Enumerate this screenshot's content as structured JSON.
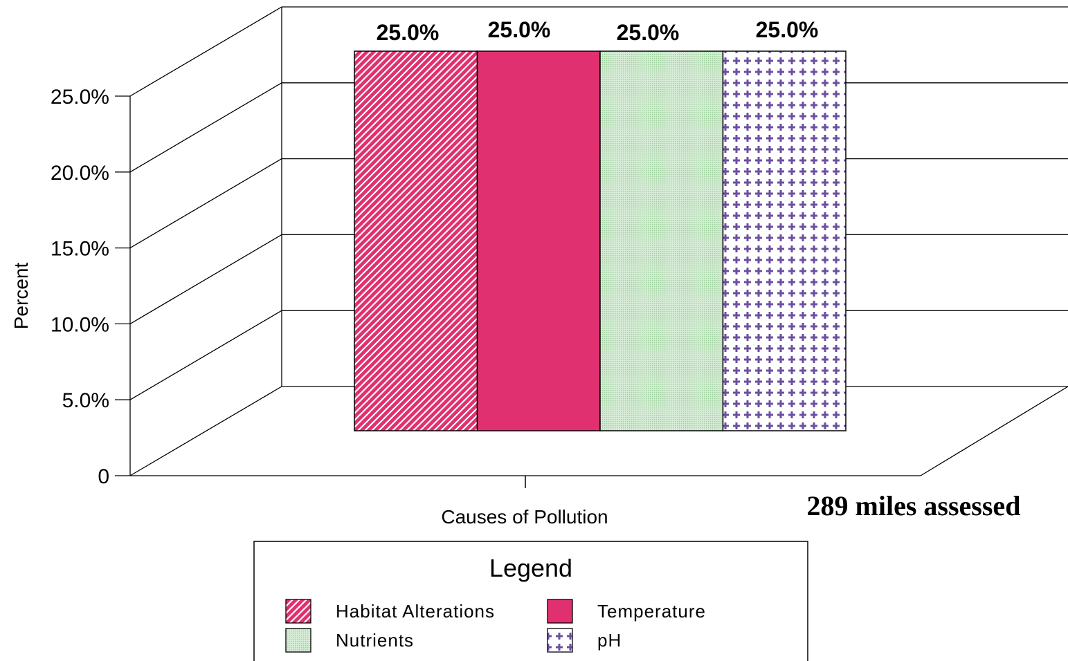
{
  "chart_data": {
    "type": "bar",
    "categories": [
      "Causes of Pollution"
    ],
    "series": [
      {
        "name": "Habitat Alterations",
        "values": [
          25.0
        ],
        "color": "#e0306f",
        "pattern": "diagonal-hatch"
      },
      {
        "name": "Temperature",
        "values": [
          25.0
        ],
        "color": "#e0306f",
        "pattern": "solid"
      },
      {
        "name": "Nutrients",
        "values": [
          25.0
        ],
        "color": "#c8e6c8",
        "pattern": "fine-dots"
      },
      {
        "name": "pH",
        "values": [
          25.0
        ],
        "color": "#6b4fa0",
        "pattern": "plus"
      }
    ],
    "data_labels": [
      "25.0%",
      "25.0%",
      "25.0%",
      "25.0%"
    ],
    "ylim": [
      0,
      25
    ],
    "yticks": [
      0,
      5,
      10,
      15,
      20,
      25
    ],
    "ytick_labels": [
      "0",
      "5.0%",
      "10.0%",
      "15.0%",
      "20.0%",
      "25.0%"
    ],
    "ylabel": "Percent",
    "xlabel": "Causes of Pollution",
    "title": "",
    "grid": true,
    "three_d": true,
    "legend": {
      "title": "Legend",
      "placement": "bottom-center",
      "entries": [
        "Habitat Alterations",
        "Temperature",
        "Nutrients",
        "pH"
      ]
    },
    "annotation": "289 miles assessed"
  }
}
